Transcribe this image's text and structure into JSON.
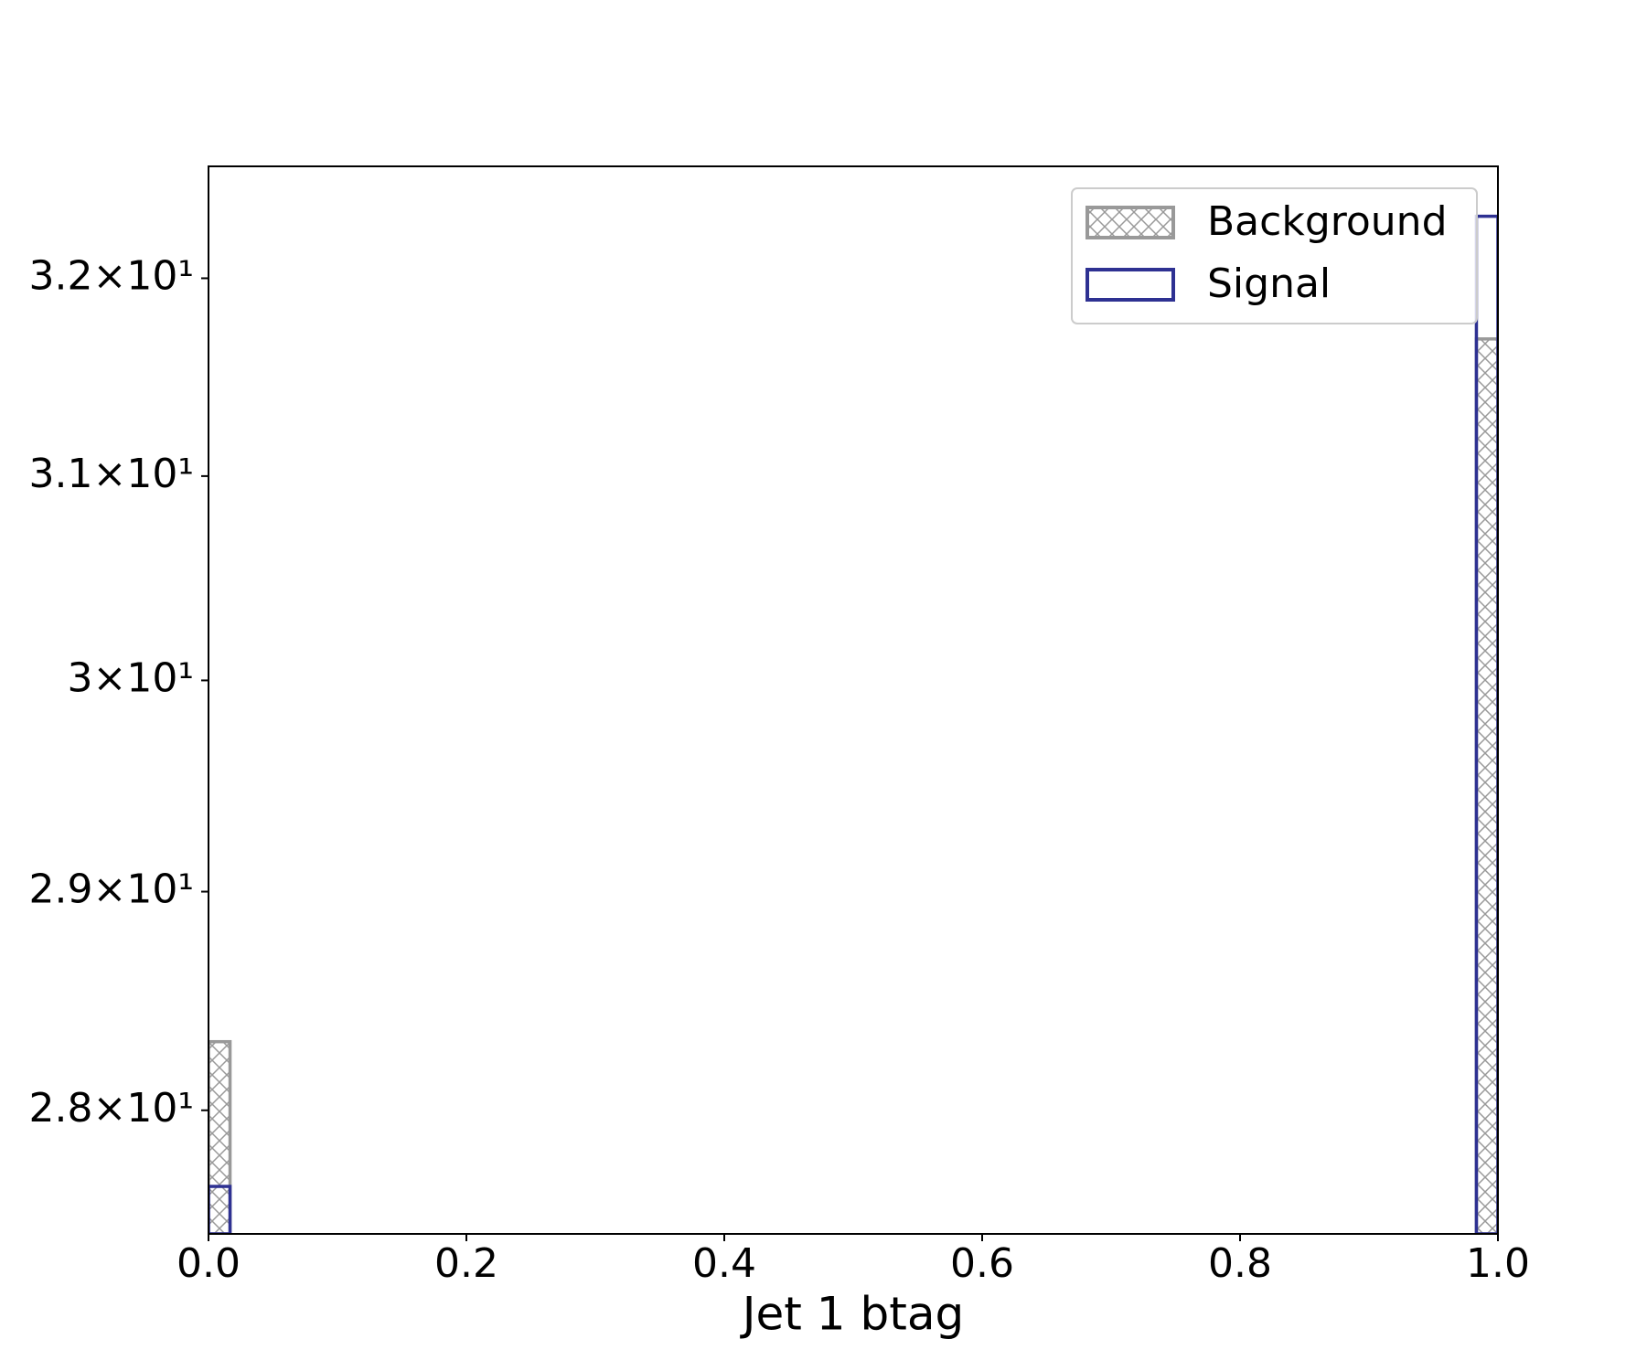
{
  "chart_data": {
    "type": "histogram",
    "xlabel": "Jet 1 btag",
    "bins": [
      0,
      0.0167,
      0.9833,
      1
    ],
    "series": [
      {
        "name": "Background",
        "color": "#999999",
        "hatch": "xx",
        "values": [
          28.31,
          0,
          31.69
        ]
      },
      {
        "name": "Signal",
        "color": "#2e3192",
        "values": [
          27.66,
          0,
          32.32
        ]
      }
    ],
    "xlim": [
      0,
      1
    ],
    "xticks": [
      {
        "value": 0,
        "label": "0.0"
      },
      0.2,
      0.4,
      0.6,
      0.8,
      {
        "value": 1,
        "label": "1.0"
      }
    ],
    "ylim": [
      27.45,
      32.58
    ],
    "log_y": true,
    "yticks": [
      {
        "value": 28,
        "label": "2.8×10¹"
      },
      {
        "value": 29,
        "label": "2.9×10¹"
      },
      {
        "value": 30,
        "label": "3×10¹"
      },
      {
        "value": 31,
        "label": "3.1×10¹"
      },
      {
        "value": 32,
        "label": "3.2×10¹"
      }
    ],
    "legend": "upper right"
  }
}
